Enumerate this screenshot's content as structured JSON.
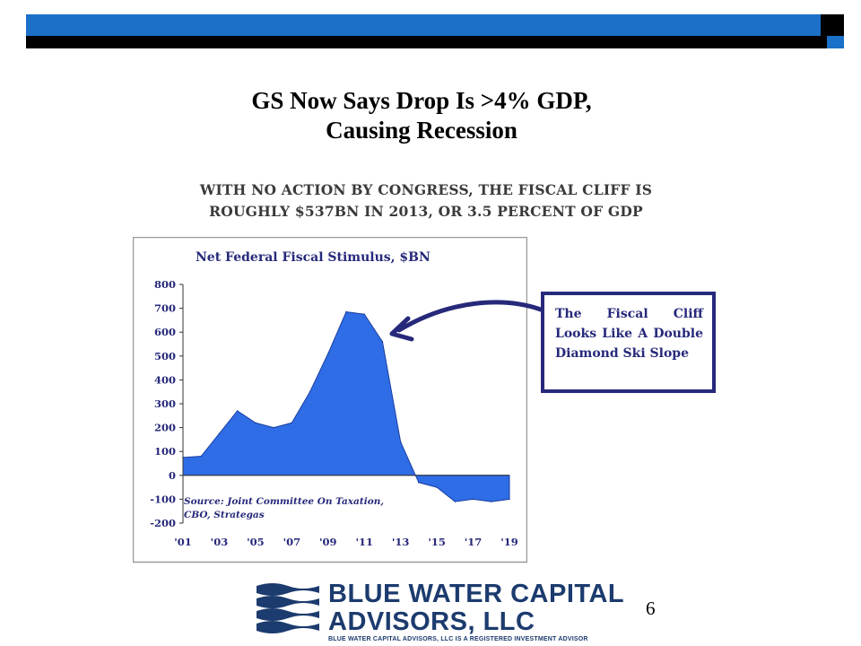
{
  "slide": {
    "title_line1": "GS Now Says Drop Is >4% GDP,",
    "title_line2": "Causing Recession",
    "headline_line1": "WITH NO ACTION BY CONGRESS, THE FISCAL CLIFF IS",
    "headline_line2": "ROUGHLY $537BN IN 2013, OR 3.5 PERCENT OF GDP",
    "callout": "The Fiscal Cliff Looks Like A Double Diamond Ski Slope",
    "page_number": "6"
  },
  "logo": {
    "line1": "BLUE WATER CAPITAL",
    "line2": "ADVISORS, LLC",
    "tagline": "BLUE WATER CAPITAL ADVISORS, LLC IS A REGISTERED INVESTMENT ADVISOR"
  },
  "colors": {
    "bar_blue": "#1b70c8",
    "area_fill": "#2f6de6",
    "callout_border": "#26297a",
    "logo_blue": "#1c3b6e"
  },
  "chart_data": {
    "type": "area",
    "title": "Net Federal Fiscal Stimulus, $BN",
    "x": [
      2001,
      2002,
      2003,
      2004,
      2005,
      2006,
      2007,
      2008,
      2009,
      2010,
      2011,
      2012,
      2013,
      2014,
      2015,
      2016,
      2017,
      2018,
      2019
    ],
    "values": [
      75,
      80,
      175,
      270,
      220,
      200,
      220,
      350,
      510,
      685,
      675,
      560,
      140,
      -30,
      -50,
      -110,
      -100,
      -110,
      -100
    ],
    "ylim": [
      -200,
      800
    ],
    "yticks": [
      800,
      700,
      600,
      500,
      400,
      300,
      200,
      100,
      0,
      -100,
      -200
    ],
    "xtick_labels": [
      "'01",
      "'03",
      "'05",
      "'07",
      "'09",
      "'11",
      "'13",
      "'15",
      "'17",
      "'19"
    ],
    "source_line1": "Source: Joint Committee On Taxation,",
    "source_line2": "CBO, Strategas",
    "grid": false,
    "legend": "none"
  }
}
